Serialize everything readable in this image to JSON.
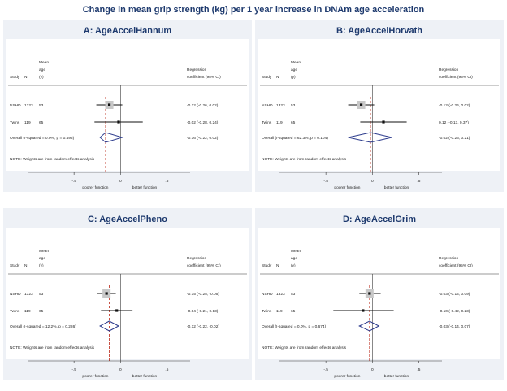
{
  "main_title": "Change in mean grip strength (kg) per 1 year increase in DNAm age acceleration",
  "headers": {
    "study": "Study",
    "n": "N",
    "mean_age": [
      "Mean",
      "age",
      "(y)"
    ],
    "coef": [
      "Regression",
      "coefficient (95% CI)"
    ]
  },
  "note": "NOTE: Weights are from random effects analysis",
  "xaxis": {
    "ticks": [
      "-.5",
      "0",
      ".5"
    ],
    "left_label": "poorer function",
    "right_label": "better function"
  },
  "chart_data": [
    {
      "type": "forest",
      "title": "A: AgeAccelHannum",
      "xlim": [
        -1.0,
        0.75
      ],
      "xticks": [
        -0.5,
        0,
        0.5
      ],
      "reference_line": -0.16,
      "rows": [
        {
          "study": "NSHD",
          "n": "1323",
          "age": "53",
          "est": -0.12,
          "lo": -0.26,
          "hi": 0.02,
          "ci": "-0.12 (-0.26, 0.02)"
        },
        {
          "study": "Twins",
          "n": "119",
          "age": "65",
          "est": -0.02,
          "lo": -0.28,
          "hi": 0.24,
          "ci": "-0.02 (-0.28, 0.24)"
        }
      ],
      "overall": {
        "label": "Overall  (I-squared = 0.0%, p = 0.496)",
        "est": -0.16,
        "lo": -0.22,
        "hi": 0.02,
        "ci": "-0.16 (-0.22, 0.02)"
      }
    },
    {
      "type": "forest",
      "title": "B: AgeAccelHorvath",
      "xlim": [
        -1.0,
        0.75
      ],
      "xticks": [
        -0.5,
        0,
        0.5
      ],
      "reference_line": -0.02,
      "rows": [
        {
          "study": "NSHD",
          "n": "1323",
          "age": "53",
          "est": -0.12,
          "lo": -0.26,
          "hi": 0.02,
          "ci": "-0.12 (-0.26, 0.02)"
        },
        {
          "study": "Twins",
          "n": "119",
          "age": "65",
          "est": 0.12,
          "lo": -0.13,
          "hi": 0.37,
          "ci": "0.12 (-0.13, 0.37)"
        }
      ],
      "overall": {
        "label": "Overall  (I-squared = 62.3%, p = 0.104)",
        "est": -0.02,
        "lo": -0.26,
        "hi": 0.21,
        "ci": "-0.02 (-0.26, 0.21)"
      }
    },
    {
      "type": "forest",
      "title": "C: AgeAccelPheno",
      "xlim": [
        -1.0,
        0.75
      ],
      "xticks": [
        -0.5,
        0,
        0.5
      ],
      "reference_line": -0.12,
      "rows": [
        {
          "study": "NSHD",
          "n": "1323",
          "age": "53",
          "est": -0.15,
          "lo": -0.25,
          "hi": -0.05,
          "ci": "-0.15 (-0.25, -0.05)"
        },
        {
          "study": "Twins",
          "n": "119",
          "age": "65",
          "est": -0.04,
          "lo": -0.21,
          "hi": 0.13,
          "ci": "-0.04 (-0.21, 0.13)"
        }
      ],
      "overall": {
        "label": "Overall  (I-squared = 12.2%, p = 0.286)",
        "est": -0.12,
        "lo": -0.22,
        "hi": -0.02,
        "ci": "-0.12 (-0.22, -0.02)"
      }
    },
    {
      "type": "forest",
      "title": "D: AgeAccelGrim",
      "xlim": [
        -1.0,
        0.75
      ],
      "xticks": [
        -0.5,
        0,
        0.5
      ],
      "reference_line": -0.03,
      "rows": [
        {
          "study": "NSHD",
          "n": "1323",
          "age": "53",
          "est": -0.03,
          "lo": -0.14,
          "hi": 0.09,
          "ci": "-0.03 (-0.14, 0.09)"
        },
        {
          "study": "Twins",
          "n": "119",
          "age": "65",
          "est": -0.1,
          "lo": -0.42,
          "hi": 0.23,
          "ci": "-0.10 (-0.42, 0.23)"
        }
      ],
      "overall": {
        "label": "Overall  (I-squared = 0.0%, p = 0.674)",
        "est": -0.03,
        "lo": -0.14,
        "hi": 0.07,
        "ci": "-0.03 (-0.14, 0.07)"
      }
    }
  ]
}
